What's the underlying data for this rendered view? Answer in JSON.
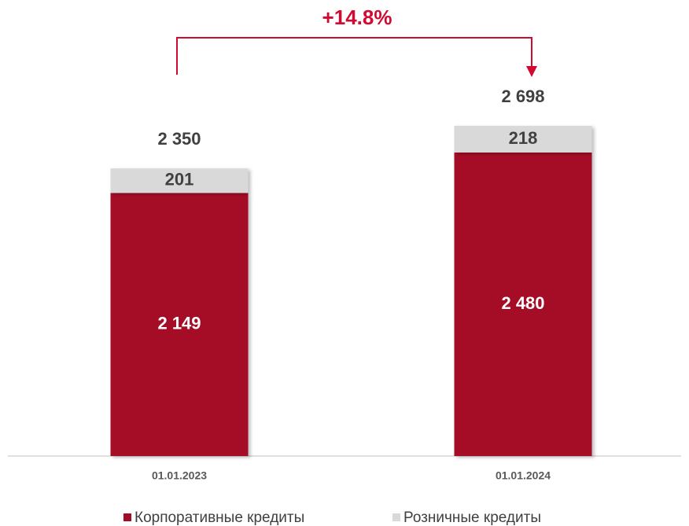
{
  "chart_data": {
    "type": "stacked_bar",
    "annotation": "+14.8%",
    "categories": [
      "01.01.2023",
      "01.01.2024"
    ],
    "series": [
      {
        "name": "Корпоративные кредиты",
        "color": "#a50a28",
        "label_color": "#ffffff",
        "values": [
          2149,
          2480
        ],
        "value_labels": [
          "2 149",
          "2 480"
        ]
      },
      {
        "name": "Розничные кредиты",
        "color": "#d9d9d9",
        "label_color": "#404040",
        "values": [
          201,
          218
        ],
        "value_labels": [
          "201",
          "218"
        ]
      }
    ],
    "totals": [
      2350,
      2698
    ],
    "total_labels": [
      "2 350",
      "2 698"
    ]
  }
}
